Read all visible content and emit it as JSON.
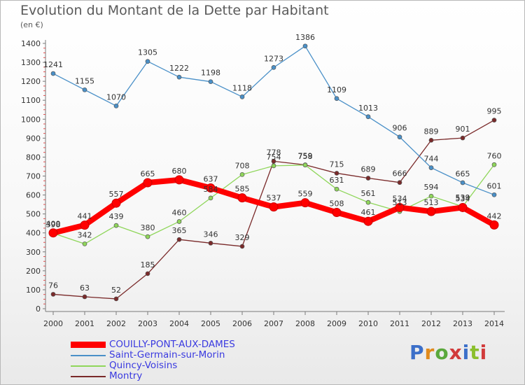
{
  "header": {
    "title": "Evolution du Montant de la Dette par Habitant",
    "unit": "(en €)"
  },
  "brand": {
    "text": "Proxiti",
    "letter_colors": [
      "#3b6fc9",
      "#e08a1c",
      "#5aa83c",
      "#d13b3b",
      "#3b6fc9",
      "#8bbf2c",
      "#d13b3b"
    ]
  },
  "chart_data": {
    "type": "line",
    "title": "Evolution du Montant de la Dette par Habitant",
    "subtitle": "(en €)",
    "xlabel": "",
    "ylabel": "",
    "ylim": [
      0,
      1400
    ],
    "y_ticks": [
      0,
      100,
      200,
      300,
      400,
      500,
      600,
      700,
      800,
      900,
      1000,
      1100,
      1200,
      1300,
      1400
    ],
    "x": [
      "2000",
      "2001",
      "2002",
      "2003",
      "2004",
      "2005",
      "2006",
      "2007",
      "2008",
      "2009",
      "2010",
      "2011",
      "2012",
      "2013",
      "2014"
    ],
    "grid": false,
    "legend_position": "bottom-left",
    "series": [
      {
        "name": "COUILLY-PONT-AUX-DAMES",
        "color": "#ff0000",
        "values": [
          400,
          441,
          557,
          665,
          680,
          637,
          585,
          537,
          559,
          508,
          461,
          534,
          513,
          534,
          442
        ]
      },
      {
        "name": "Saint-Germain-sur-Morin",
        "color": "#4a90c8",
        "values": [
          1241,
          1155,
          1070,
          1305,
          1222,
          1198,
          1118,
          1273,
          1386,
          1109,
          1013,
          906,
          744,
          665,
          601
        ]
      },
      {
        "name": "Quincy-Voisins",
        "color": "#8fd65a",
        "values": [
          398,
          342,
          439,
          380,
          460,
          584,
          708,
          754,
          758,
          631,
          561,
          513,
          594,
          539,
          760
        ]
      },
      {
        "name": "Montry",
        "color": "#7a2a2a",
        "values": [
          76,
          63,
          52,
          185,
          365,
          346,
          329,
          778,
          759,
          715,
          689,
          666,
          889,
          901,
          995
        ]
      }
    ]
  }
}
